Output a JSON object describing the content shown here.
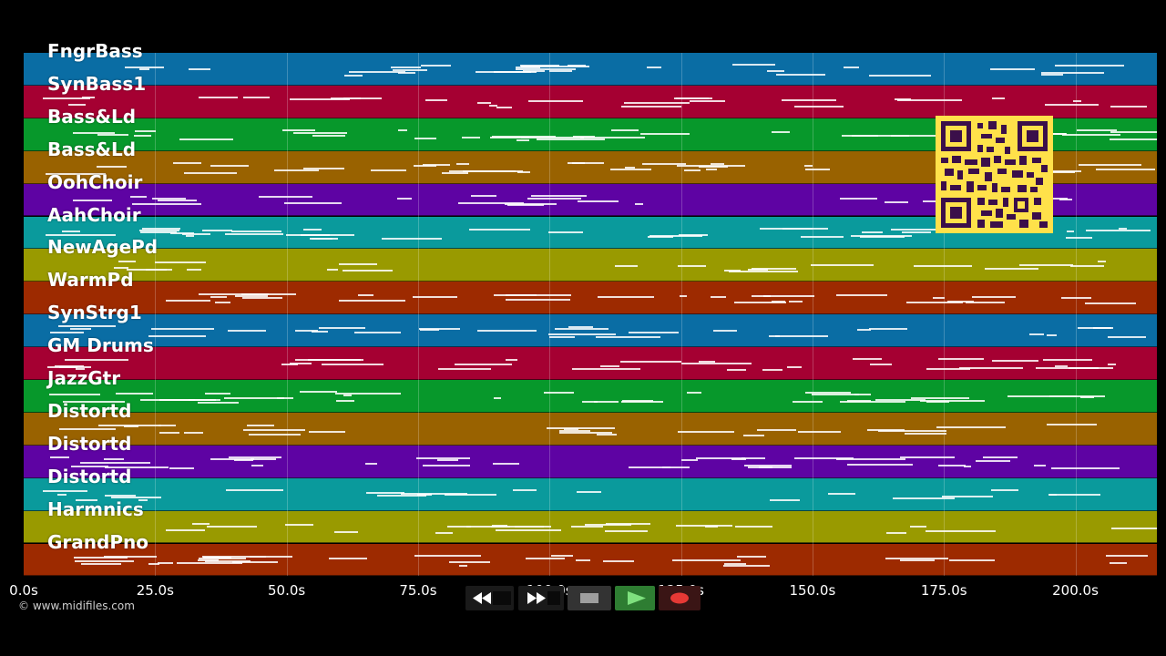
{
  "tracks": [
    {
      "name": "FngrBass",
      "color": "#0a6da4"
    },
    {
      "name": "SynBass1",
      "color": "#a50032"
    },
    {
      "name": "Bass&Ld",
      "color": "#07982b"
    },
    {
      "name": "Bass&Ld",
      "color": "#996200"
    },
    {
      "name": "OohChoir",
      "color": "#5e03a3"
    },
    {
      "name": "AahChoir",
      "color": "#0a9a9c"
    },
    {
      "name": "NewAgePd",
      "color": "#999a00"
    },
    {
      "name": "WarmPd",
      "color": "#9d2a00"
    },
    {
      "name": "SynStrg1",
      "color": "#0a6da4"
    },
    {
      "name": "GM Drums",
      "color": "#a50032"
    },
    {
      "name": "JazzGtr",
      "color": "#07982b"
    },
    {
      "name": "Distortd",
      "color": "#996200"
    },
    {
      "name": "Distortd",
      "color": "#5e03a3"
    },
    {
      "name": "Distortd",
      "color": "#0a9a9c"
    },
    {
      "name": "Harmnics",
      "color": "#999a00"
    },
    {
      "name": "GrandPno",
      "color": "#9d2a00"
    }
  ],
  "timeline": {
    "unit": "s",
    "max_seconds": 215.5,
    "ticks": [
      "0.0s",
      "25.0s",
      "50.0s",
      "75.0s",
      "100.0s",
      "125.0s",
      "150.0s",
      "175.0s",
      "200.0s"
    ]
  },
  "copyright": "© www.midifiles.com",
  "transport": {
    "rewind_icon": "rewind-icon",
    "fast_forward_icon": "fast-forward-icon",
    "stop_icon": "stop-icon",
    "play_icon": "play-icon",
    "record_icon": "record-icon",
    "play_color": "#2e7d32",
    "record_color": "#e53935"
  },
  "qr_code": {
    "color": "#ffe14a"
  }
}
